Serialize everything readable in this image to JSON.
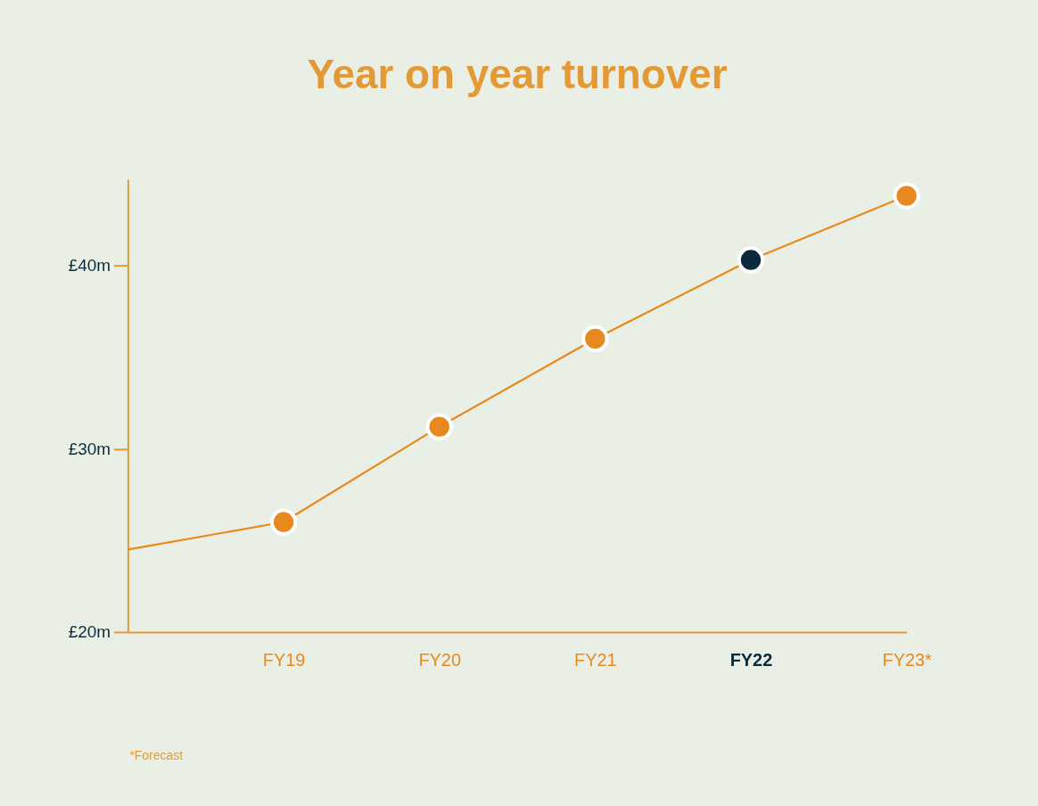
{
  "chart_data": {
    "type": "line",
    "title": "Year on year turnover",
    "categories": [
      null,
      "FY19",
      "FY20",
      "FY21",
      "FY22",
      "FY23*"
    ],
    "series": [
      {
        "color": "#e8891f",
        "values": [
          24.5,
          26.0,
          31.2,
          36.0,
          40.3,
          43.8
        ],
        "colors": [
          null,
          "#e8891f",
          "#e8891f",
          "#e8891f",
          "#0b2a3c",
          "#e8891f"
        ]
      }
    ],
    "ylim": [
      20,
      44.7
    ],
    "yticks": [
      {
        "value": 20,
        "label": "£20m"
      },
      {
        "value": 30,
        "label": "£30m"
      },
      {
        "value": 40,
        "label": "£40m"
      }
    ],
    "grid": false,
    "marker": "circle",
    "line_style": "solid",
    "annotations": [
      "*Forecast"
    ]
  }
}
